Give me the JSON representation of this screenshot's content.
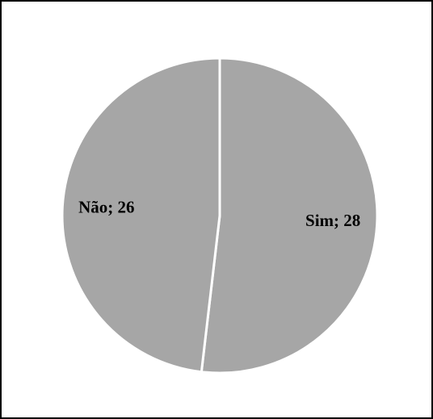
{
  "chart_data": {
    "type": "pie",
    "values": [
      28,
      26
    ],
    "value_labels": [
      "Sim; 28",
      "Não; 26"
    ],
    "color": "#a6a6a6"
  }
}
